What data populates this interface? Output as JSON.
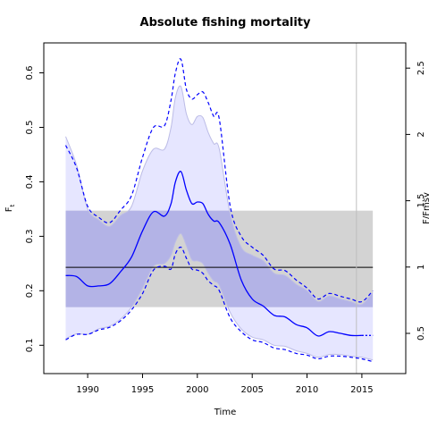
{
  "chart_data": {
    "type": "line",
    "title": "Absolute fishing mortality",
    "xlabel": "Time",
    "ylabel": "F",
    "ylabel_subscript": "t",
    "right_axis_label": "F/Fmsy",
    "xlim": [
      1986,
      2019
    ],
    "ylim": [
      0.048,
      0.655
    ],
    "right_ylim": [
      0.197,
      2.69
    ],
    "x_ticks": [
      1990,
      1995,
      2000,
      2005,
      2010,
      2015
    ],
    "y_ticks": [
      0.1,
      0.2,
      0.3,
      0.4,
      0.5,
      0.6
    ],
    "right_ticks": [
      0.5,
      1,
      1.5,
      2,
      2.5
    ],
    "x_tick_labels": [
      "1990",
      "1995",
      "2000",
      "2005",
      "2010",
      "2015"
    ],
    "y_tick_labels": [
      "0.1",
      "0.2",
      "0.3",
      "0.4",
      "0.5",
      "0.6"
    ],
    "right_tick_labels": [
      "0.5",
      "1",
      "1.5",
      "2",
      "2.5"
    ],
    "grid": false,
    "vline_x": 2014.5,
    "fmsy": {
      "value": 0.243,
      "ci_lower": 0.17,
      "ci_upper": 0.347,
      "x_range": [
        1988,
        2016
      ],
      "band_color": "#d3d3d3",
      "line_color": "#000000"
    },
    "estimate": {
      "color": "#0000ff",
      "projection_from": 2014.5,
      "x": [
        1988,
        1989,
        1990,
        1991,
        1992,
        1993,
        1994,
        1995,
        1996,
        1997,
        1997.6,
        1998,
        1998.5,
        1999,
        1999.5,
        2000,
        2000.5,
        2001,
        2001.5,
        2002,
        2003,
        2004,
        2005,
        2006,
        2007,
        2008,
        2009,
        2010,
        2011,
        2012,
        2013,
        2014,
        2015,
        2016
      ],
      "y": [
        0.228,
        0.226,
        0.209,
        0.209,
        0.213,
        0.235,
        0.262,
        0.31,
        0.345,
        0.337,
        0.36,
        0.4,
        0.419,
        0.385,
        0.36,
        0.363,
        0.36,
        0.34,
        0.328,
        0.325,
        0.285,
        0.22,
        0.185,
        0.172,
        0.155,
        0.152,
        0.138,
        0.132,
        0.117,
        0.125,
        0.122,
        0.118,
        0.118,
        0.118
      ]
    },
    "ci_lower": {
      "color": "#0000ff",
      "dashed": true,
      "x": [
        1988,
        1989,
        1990,
        1991,
        1992,
        1993,
        1994,
        1995,
        1996,
        1997,
        1997.6,
        1998,
        1998.5,
        1999,
        1999.5,
        2000,
        2000.5,
        2001,
        2001.5,
        2002,
        2003,
        2004,
        2005,
        2006,
        2007,
        2008,
        2009,
        2010,
        2011,
        2012,
        2013,
        2014,
        2015,
        2016
      ],
      "y": [
        0.11,
        0.12,
        0.12,
        0.128,
        0.133,
        0.145,
        0.165,
        0.195,
        0.238,
        0.245,
        0.24,
        0.268,
        0.28,
        0.26,
        0.24,
        0.238,
        0.232,
        0.218,
        0.21,
        0.2,
        0.15,
        0.125,
        0.11,
        0.105,
        0.095,
        0.092,
        0.085,
        0.082,
        0.075,
        0.08,
        0.08,
        0.078,
        0.075,
        0.07
      ]
    },
    "ci_upper": {
      "color": "#0000ff",
      "dashed": true,
      "x": [
        1988,
        1989,
        1990,
        1991,
        1992,
        1993,
        1994,
        1995,
        1996,
        1997,
        1997.6,
        1998,
        1998.5,
        1999,
        1999.5,
        2000,
        2000.5,
        2001,
        2001.5,
        2002,
        2003,
        2004,
        2005,
        2006,
        2007,
        2008,
        2009,
        2010,
        2011,
        2012,
        2013,
        2014,
        2015,
        2016
      ],
      "y": [
        0.467,
        0.425,
        0.355,
        0.335,
        0.325,
        0.348,
        0.375,
        0.445,
        0.5,
        0.503,
        0.55,
        0.6,
        0.625,
        0.57,
        0.552,
        0.56,
        0.565,
        0.545,
        0.52,
        0.515,
        0.355,
        0.3,
        0.28,
        0.265,
        0.24,
        0.237,
        0.22,
        0.205,
        0.185,
        0.195,
        0.19,
        0.185,
        0.18,
        0.2
      ]
    },
    "inner_band": {
      "fill_color": "#e6e6ff",
      "edge_color": "#bcbce6",
      "x": [
        1988,
        1989,
        1990,
        1991,
        1992,
        1993,
        1994,
        1995,
        1996,
        1997,
        1997.6,
        1998,
        1998.5,
        1999,
        1999.5,
        2000,
        2000.5,
        2001,
        2001.5,
        2002,
        2003,
        2004,
        2005,
        2006,
        2007,
        2008,
        2009,
        2010,
        2011,
        2012,
        2013,
        2014,
        2015,
        2016
      ],
      "lower": [
        0.112,
        0.121,
        0.12,
        0.13,
        0.135,
        0.148,
        0.17,
        0.205,
        0.245,
        0.25,
        0.265,
        0.29,
        0.305,
        0.283,
        0.257,
        0.255,
        0.25,
        0.232,
        0.218,
        0.21,
        0.16,
        0.13,
        0.115,
        0.11,
        0.1,
        0.098,
        0.09,
        0.085,
        0.078,
        0.083,
        0.083,
        0.08,
        0.078,
        0.073
      ],
      "upper": [
        0.483,
        0.43,
        0.35,
        0.33,
        0.318,
        0.338,
        0.355,
        0.42,
        0.46,
        0.46,
        0.5,
        0.555,
        0.575,
        0.525,
        0.505,
        0.52,
        0.518,
        0.49,
        0.47,
        0.46,
        0.34,
        0.28,
        0.265,
        0.255,
        0.232,
        0.228,
        0.212,
        0.2,
        0.18,
        0.19,
        0.185,
        0.18,
        0.175,
        0.197
      ]
    }
  }
}
